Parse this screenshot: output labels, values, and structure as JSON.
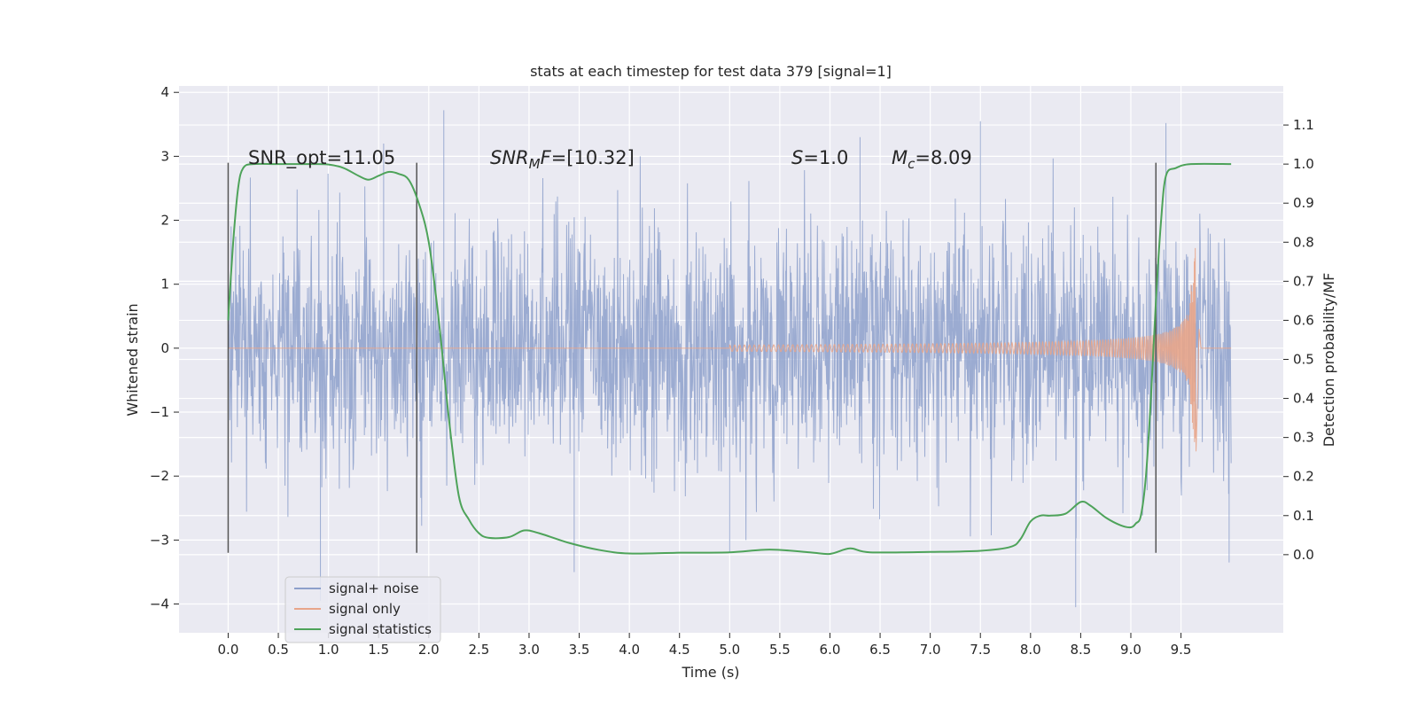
{
  "chart_data": {
    "type": "line",
    "title": "stats at each timestep for test data 379 [signal=1]",
    "xlabel": "Time (s)",
    "ylabel_left": "Whitened strain",
    "ylabel_right": "Detection probability/MF",
    "xlim": [
      -0.49,
      10.52
    ],
    "ylim_left": [
      -4.45,
      4.1
    ],
    "ylim_right": [
      -0.2,
      1.2
    ],
    "x_ticks": [
      "0.0",
      "0.5",
      "1.0",
      "1.5",
      "2.0",
      "2.5",
      "3.0",
      "3.5",
      "4.0",
      "4.5",
      "5.0",
      "5.5",
      "6.0",
      "6.5",
      "7.0",
      "7.5",
      "8.0",
      "8.5",
      "9.0",
      "9.5"
    ],
    "y_left_ticks": [
      "4",
      "3",
      "2",
      "1",
      "0",
      "−1",
      "−2",
      "−3",
      "−4"
    ],
    "y_right_ticks": [
      "1.1",
      "1.0",
      "0.9",
      "0.8",
      "0.7",
      "0.6",
      "0.5",
      "0.4",
      "0.3",
      "0.2",
      "0.1",
      "0.0"
    ],
    "grid": true,
    "legend_position": "lower-left",
    "annotations": {
      "snr_opt": "SNR_opt=11.05",
      "snr_mf_base": "SNR",
      "snr_mf_sub": "M",
      "snr_mf_rest": "F=[10.32]",
      "s_var": "S",
      "s_rest": "=1.0",
      "mc_var": "M",
      "mc_sub": "c",
      "mc_rest": "=8.09"
    },
    "vertical_markers_x": [
      0.0,
      1.88,
      9.25
    ],
    "series": [
      {
        "name": "signal+ noise",
        "color": "#8da0cb",
        "axis": "left",
        "x_range": [
          0.0,
          10.0
        ],
        "envelope_typical": 1.6,
        "peaks": [
          [
            0.92,
            -3.95
          ],
          [
            1.55,
            3.2
          ],
          [
            2.15,
            3.72
          ],
          [
            3.45,
            -3.5
          ],
          [
            5.0,
            -3.2
          ],
          [
            6.3,
            3.3
          ],
          [
            7.5,
            3.55
          ],
          [
            8.45,
            -4.05
          ],
          [
            9.35,
            3.52
          ],
          [
            9.98,
            -3.35
          ]
        ]
      },
      {
        "name": "signal only",
        "color": "#e8a58a",
        "axis": "left",
        "chirp_start": 5.0,
        "merger_time": 9.65,
        "amp_start": 0.05,
        "amp_before_merger": 0.55,
        "amp_peak": 1.7,
        "x_end": 10.0
      },
      {
        "name": "signal statistics",
        "color": "#4ea35a",
        "axis": "right",
        "x": [
          0.0,
          0.05,
          0.1,
          0.15,
          0.25,
          0.5,
          0.8,
          1.0,
          1.15,
          1.3,
          1.4,
          1.5,
          1.6,
          1.7,
          1.8,
          1.9,
          2.0,
          2.1,
          2.2,
          2.3,
          2.4,
          2.5,
          2.6,
          2.8,
          2.95,
          3.1,
          3.4,
          3.7,
          4.0,
          4.5,
          5.0,
          5.4,
          5.8,
          6.0,
          6.2,
          6.4,
          7.0,
          7.5,
          7.8,
          7.9,
          8.0,
          8.1,
          8.2,
          8.35,
          8.5,
          8.6,
          8.75,
          8.9,
          9.0,
          9.05,
          9.1,
          9.15,
          9.2,
          9.25,
          9.3,
          9.35,
          9.45,
          9.6,
          10.0
        ],
        "y": [
          0.6,
          0.8,
          0.94,
          0.99,
          1.0,
          1.0,
          1.0,
          0.999,
          0.99,
          0.97,
          0.96,
          0.97,
          0.98,
          0.975,
          0.96,
          0.9,
          0.8,
          0.6,
          0.35,
          0.15,
          0.09,
          0.055,
          0.043,
          0.045,
          0.062,
          0.055,
          0.03,
          0.012,
          0.003,
          0.005,
          0.006,
          0.013,
          0.006,
          0.002,
          0.016,
          0.006,
          0.007,
          0.01,
          0.02,
          0.04,
          0.085,
          0.1,
          0.1,
          0.105,
          0.135,
          0.125,
          0.095,
          0.075,
          0.07,
          0.08,
          0.1,
          0.2,
          0.4,
          0.65,
          0.85,
          0.97,
          0.99,
          1.0,
          1.0
        ]
      }
    ]
  }
}
